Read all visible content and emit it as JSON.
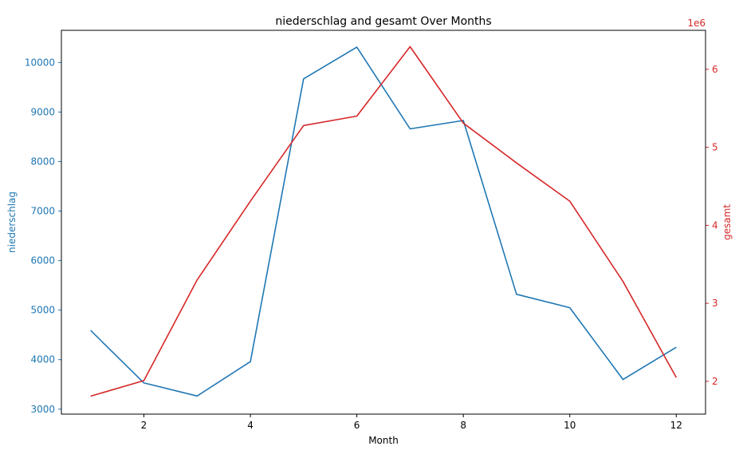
{
  "chart_data": {
    "type": "line",
    "title": "niederschlag and gesamt Over Months",
    "xlabel": "Month",
    "x": [
      1,
      2,
      3,
      4,
      5,
      6,
      7,
      8,
      9,
      10,
      11,
      12
    ],
    "xlim": [
      0.45,
      12.55
    ],
    "xticks": [
      2,
      4,
      6,
      8,
      10,
      12
    ],
    "grid": false,
    "legend": "none",
    "y_left": {
      "label": "niederschlag",
      "color": "#1f77b4",
      "lim": [
        2900,
        10650
      ],
      "ticks": [
        3000,
        4000,
        5000,
        6000,
        7000,
        8000,
        9000,
        10000
      ]
    },
    "y_right": {
      "label": "gesamt",
      "color": "#d62728",
      "lim": [
        1.58,
        6.5
      ],
      "ticks": [
        2,
        3,
        4,
        5,
        6
      ],
      "offset_text": "1e6"
    },
    "series": [
      {
        "name": "niederschlag",
        "axis": "left",
        "color": "#1f77b4",
        "values": [
          4590,
          3530,
          3265,
          3960,
          9670,
          10310,
          8660,
          8830,
          5320,
          5050,
          3600,
          4250
        ]
      },
      {
        "name": "gesamt",
        "axis": "right",
        "color": "#d62728",
        "values": [
          1.81,
          2.01,
          3.3,
          4.31,
          5.28,
          5.4,
          6.29,
          5.31,
          4.8,
          4.31,
          3.28,
          2.05
        ]
      }
    ]
  }
}
